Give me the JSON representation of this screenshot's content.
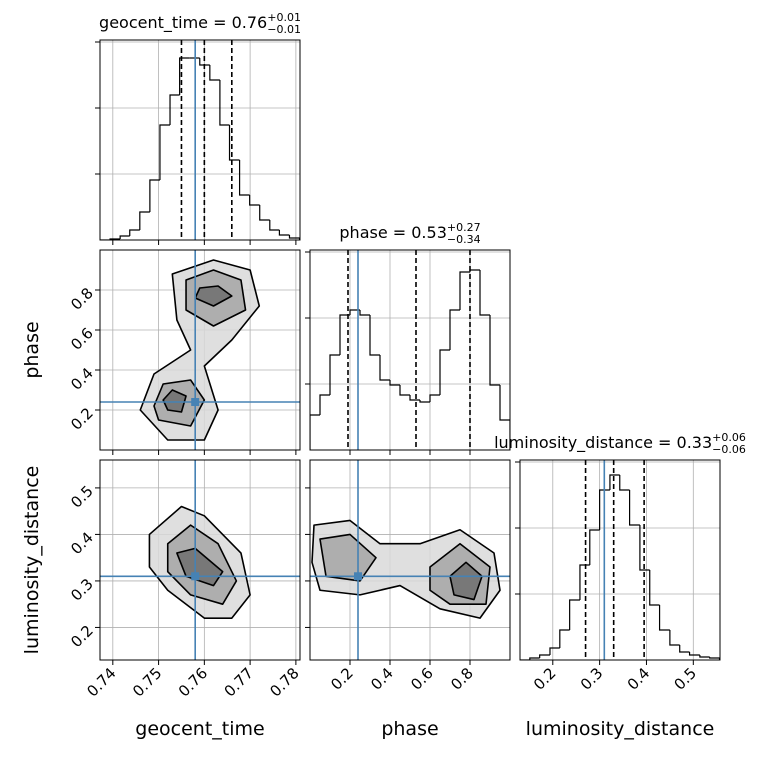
{
  "chart_data": [
    {
      "type": "histogram",
      "title": {
        "text": "geocent_time = 0.76",
        "sup": "+0.01",
        "sub": "−0.01"
      },
      "bins": [
        0.7372,
        0.7394,
        0.7416,
        0.7437,
        0.7459,
        0.7481,
        0.7503,
        0.7525,
        0.7546,
        0.7568,
        0.759,
        0.7612,
        0.7634,
        0.7655,
        0.7677,
        0.7699,
        0.7721,
        0.7743,
        0.7764,
        0.7786,
        0.7808
      ],
      "counts": [
        0,
        1,
        4,
        10,
        28,
        60,
        115,
        145,
        182,
        182,
        175,
        160,
        115,
        80,
        45,
        35,
        20,
        10,
        5,
        2
      ],
      "xlim": [
        0.7372,
        0.7809
      ],
      "ylim": [
        0,
        200
      ],
      "yticks": [
        66,
        132,
        198
      ],
      "quantiles": [
        0.755,
        0.76,
        0.766
      ],
      "truth": 0.758,
      "color": "#000000",
      "truth_color": "#4682b4",
      "grid": true
    },
    {
      "type": "contour",
      "ylabel": "phase",
      "xlim": [
        0.7372,
        0.7809
      ],
      "ylim": [
        0,
        1
      ],
      "yticks": [
        0.2,
        0.4,
        0.6,
        0.8
      ],
      "truth_x": 0.758,
      "truth_y": 0.24,
      "truth_color": "#4682b4",
      "grid": true,
      "contours": [
        {
          "x": [
            0.752,
            0.76,
            0.763,
            0.76,
            0.766,
            0.772,
            0.77,
            0.762,
            0.753,
            0.754,
            0.757,
            0.749,
            0.746
          ],
          "y": [
            0.05,
            0.05,
            0.2,
            0.42,
            0.55,
            0.72,
            0.9,
            0.95,
            0.88,
            0.65,
            0.5,
            0.38,
            0.2
          ]
        },
        {
          "x": [
            0.756,
            0.762,
            0.769,
            0.768,
            0.762,
            0.756
          ],
          "y": [
            0.7,
            0.62,
            0.7,
            0.85,
            0.9,
            0.85
          ]
        },
        {
          "x": [
            0.75,
            0.757,
            0.76,
            0.757,
            0.751,
            0.749
          ],
          "y": [
            0.15,
            0.12,
            0.25,
            0.35,
            0.33,
            0.22
          ]
        },
        {
          "x": [
            0.758,
            0.762,
            0.766,
            0.763,
            0.759
          ],
          "y": [
            0.76,
            0.72,
            0.77,
            0.82,
            0.81
          ]
        },
        {
          "x": [
            0.752,
            0.755,
            0.756,
            0.753,
            0.751
          ],
          "y": [
            0.2,
            0.19,
            0.27,
            0.3,
            0.25
          ]
        }
      ]
    },
    {
      "type": "histogram",
      "title": {
        "text": "phase = 0.53",
        "sup": "+0.27",
        "sub": "−0.34"
      },
      "bins": [
        0,
        0.05,
        0.1,
        0.15,
        0.2,
        0.25,
        0.3,
        0.35,
        0.4,
        0.45,
        0.5,
        0.55,
        0.6,
        0.65,
        0.7,
        0.75,
        0.8,
        0.85,
        0.9,
        0.95,
        1.0
      ],
      "counts": [
        35,
        55,
        95,
        135,
        140,
        135,
        95,
        70,
        65,
        55,
        50,
        48,
        55,
        100,
        140,
        178,
        180,
        135,
        65,
        30
      ],
      "xlim": [
        0,
        1
      ],
      "ylim": [
        0,
        200
      ],
      "yticks": [
        66,
        132,
        198
      ],
      "quantiles": [
        0.19,
        0.53,
        0.8
      ],
      "truth": 0.24,
      "color": "#000000",
      "truth_color": "#4682b4",
      "grid": true
    },
    {
      "type": "contour",
      "xlabel": "geocent_time",
      "ylabel": "luminosity_distance",
      "xlim": [
        0.7372,
        0.7809
      ],
      "ylim": [
        0.13,
        0.56
      ],
      "xticks": [
        0.74,
        0.75,
        0.76,
        0.77,
        0.78
      ],
      "yticks": [
        0.2,
        0.3,
        0.4,
        0.5
      ],
      "truth_x": 0.758,
      "truth_y": 0.31,
      "truth_color": "#4682b4",
      "grid": true,
      "contours": [
        {
          "x": [
            0.748,
            0.755,
            0.76,
            0.768,
            0.77,
            0.766,
            0.76,
            0.752,
            0.748
          ],
          "y": [
            0.4,
            0.46,
            0.44,
            0.36,
            0.27,
            0.22,
            0.22,
            0.28,
            0.33
          ]
        },
        {
          "x": [
            0.752,
            0.757,
            0.763,
            0.767,
            0.764,
            0.757,
            0.752
          ],
          "y": [
            0.38,
            0.42,
            0.38,
            0.3,
            0.25,
            0.27,
            0.32
          ]
        },
        {
          "x": [
            0.754,
            0.758,
            0.764,
            0.762,
            0.756
          ],
          "y": [
            0.36,
            0.37,
            0.32,
            0.29,
            0.31
          ]
        }
      ]
    },
    {
      "type": "contour",
      "xlabel": "phase",
      "xlim": [
        0,
        1
      ],
      "ylim": [
        0.13,
        0.56
      ],
      "xticks": [
        0.2,
        0.4,
        0.6,
        0.8
      ],
      "truth_x": 0.24,
      "truth_y": 0.31,
      "truth_color": "#4682b4",
      "grid": true,
      "contours": [
        {
          "x": [
            0.02,
            0.2,
            0.35,
            0.55,
            0.75,
            0.92,
            0.95,
            0.85,
            0.65,
            0.45,
            0.25,
            0.05,
            0.01
          ],
          "y": [
            0.42,
            0.43,
            0.38,
            0.38,
            0.41,
            0.36,
            0.28,
            0.22,
            0.24,
            0.29,
            0.27,
            0.28,
            0.34
          ]
        },
        {
          "x": [
            0.05,
            0.2,
            0.33,
            0.25,
            0.08
          ],
          "y": [
            0.39,
            0.4,
            0.35,
            0.3,
            0.31
          ]
        },
        {
          "x": [
            0.6,
            0.75,
            0.9,
            0.88,
            0.7,
            0.6
          ],
          "y": [
            0.33,
            0.38,
            0.33,
            0.25,
            0.25,
            0.28
          ]
        },
        {
          "x": [
            0.7,
            0.78,
            0.86,
            0.82,
            0.72
          ],
          "y": [
            0.31,
            0.34,
            0.31,
            0.26,
            0.27
          ]
        }
      ]
    },
    {
      "type": "histogram",
      "title": {
        "text": "luminosity_distance = 0.33",
        "sup": "+0.06",
        "sub": "−0.06"
      },
      "xlabel": "luminosity_distance",
      "bins": [
        0.13,
        0.151,
        0.172,
        0.194,
        0.215,
        0.236,
        0.258,
        0.279,
        0.3,
        0.322,
        0.343,
        0.364,
        0.386,
        0.407,
        0.428,
        0.45,
        0.471,
        0.492,
        0.514,
        0.535,
        0.556
      ],
      "counts": [
        0,
        2,
        5,
        12,
        30,
        60,
        95,
        130,
        170,
        185,
        170,
        135,
        90,
        55,
        30,
        15,
        8,
        5,
        3,
        2
      ],
      "xlim": [
        0.13,
        0.557
      ],
      "ylim": [
        0,
        200
      ],
      "xticks": [
        0.2,
        0.3,
        0.4,
        0.5
      ],
      "yticks": [
        66,
        132,
        198
      ],
      "quantiles": [
        0.27,
        0.33,
        0.395
      ],
      "truth": 0.31,
      "color": "#000000",
      "truth_color": "#4682b4",
      "grid": true
    }
  ]
}
